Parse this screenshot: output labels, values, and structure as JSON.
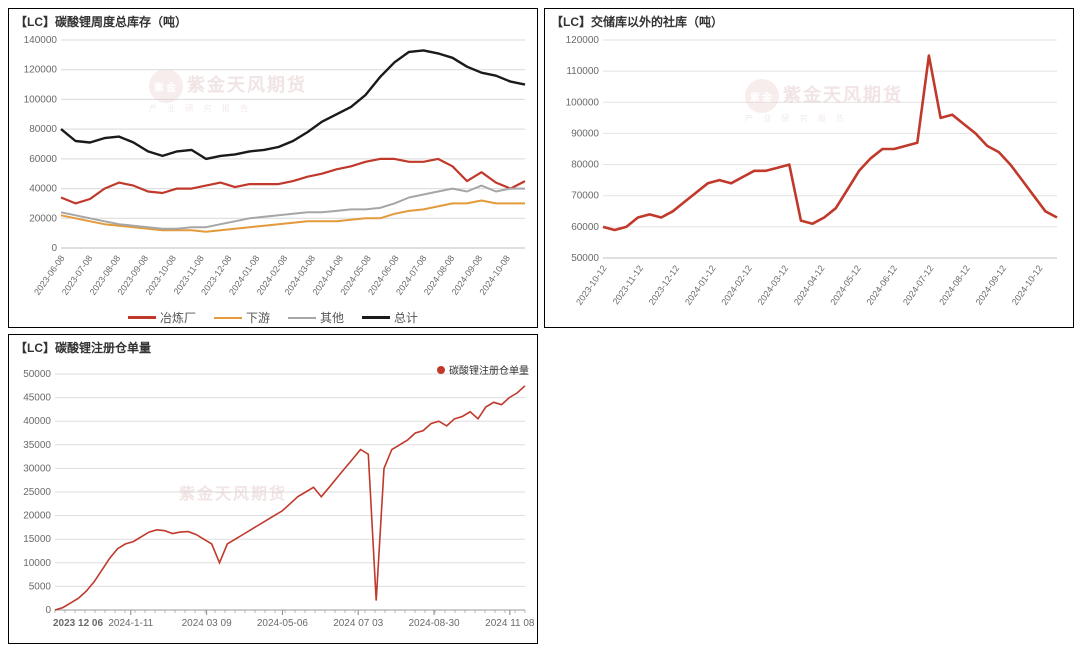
{
  "watermark": {
    "text": "紫金天风期货",
    "sub": "产 业 研 究 报 告"
  },
  "chart1": {
    "title": "【LC】碳酸锂周度总库存（吨）",
    "type": "line",
    "background_color": "#ffffff",
    "grid_color": "#d9d9d9",
    "axis_color": "#bfbfbf",
    "text_color": "#6a6a6a",
    "title_fontsize": 12,
    "label_fontsize": 10,
    "ylim": [
      0,
      140000
    ],
    "ytick_step": 20000,
    "yticks": [
      0,
      20000,
      40000,
      60000,
      80000,
      100000,
      120000,
      140000
    ],
    "xticks": [
      "2023-06-08",
      "2023-07-08",
      "2023-08-08",
      "2023-09-08",
      "2023-10-08",
      "2023-11-08",
      "2023-12-08",
      "2024-01-08",
      "2024-02-08",
      "2024-03-08",
      "2024-04-08",
      "2024-05-08",
      "2024-06-08",
      "2024-07-08",
      "2024-08-08",
      "2024-09-08",
      "2024-10-08"
    ],
    "series": [
      {
        "name": "冶炼厂",
        "color": "#c0392b",
        "width": 2.2,
        "values": [
          34000,
          30000,
          33000,
          40000,
          44000,
          42000,
          38000,
          37000,
          40000,
          40000,
          42000,
          44000,
          41000,
          43000,
          43000,
          43000,
          45000,
          48000,
          50000,
          53000,
          55000,
          58000,
          60000,
          60000,
          58000,
          58000,
          60000,
          55000,
          45000,
          51000,
          44000,
          40000,
          45000
        ]
      },
      {
        "name": "下游",
        "color": "#e29a3b",
        "width": 2,
        "values": [
          22000,
          20000,
          18000,
          16000,
          15000,
          14000,
          13000,
          12000,
          12000,
          12000,
          11000,
          12000,
          13000,
          14000,
          15000,
          16000,
          17000,
          18000,
          18000,
          18000,
          19000,
          20000,
          20000,
          23000,
          25000,
          26000,
          28000,
          30000,
          30000,
          32000,
          30000,
          30000,
          30000
        ]
      },
      {
        "name": "其他",
        "color": "#a6a6a6",
        "width": 2,
        "values": [
          24000,
          22000,
          20000,
          18000,
          16000,
          15000,
          14000,
          13000,
          13000,
          14000,
          14000,
          16000,
          18000,
          20000,
          21000,
          22000,
          23000,
          24000,
          24000,
          25000,
          26000,
          26000,
          27000,
          30000,
          34000,
          36000,
          38000,
          40000,
          38000,
          42000,
          38000,
          40000,
          40000
        ]
      },
      {
        "name": "总计",
        "color": "#1a1a1a",
        "width": 2.4,
        "values": [
          80000,
          72000,
          71000,
          74000,
          75000,
          71000,
          65000,
          62000,
          65000,
          66000,
          60000,
          62000,
          63000,
          65000,
          66000,
          68000,
          72000,
          78000,
          85000,
          90000,
          95000,
          103000,
          115000,
          125000,
          132000,
          133000,
          131000,
          128000,
          122000,
          118000,
          116000,
          112000,
          110000
        ]
      }
    ],
    "legend": [
      "冶炼厂",
      "下游",
      "其他",
      "总计"
    ]
  },
  "chart2": {
    "title": "【LC】交储库以外的社库（吨）",
    "type": "line",
    "background_color": "#ffffff",
    "grid_color": "#e2e2e2",
    "axis_color": "#bfbfbf",
    "text_color": "#6a6a6a",
    "title_fontsize": 12,
    "label_fontsize": 10,
    "ylim": [
      50000,
      120000
    ],
    "ytick_step": 10000,
    "yticks": [
      50000,
      60000,
      70000,
      80000,
      90000,
      100000,
      110000,
      120000
    ],
    "xticks": [
      "2023-10-12",
      "2023-11-12",
      "2023-12-12",
      "2024-01-12",
      "2024-02-12",
      "2024-03-12",
      "2024-04-12",
      "2024-05-12",
      "2024-06-12",
      "2024-07-12",
      "2024-08-12",
      "2024-09-12",
      "2024-10-12"
    ],
    "series": [
      {
        "name": "社库",
        "color": "#c0392b",
        "width": 2.6,
        "values": [
          60000,
          59000,
          60000,
          63000,
          64000,
          63000,
          65000,
          68000,
          71000,
          74000,
          75000,
          74000,
          76000,
          78000,
          78000,
          79000,
          80000,
          62000,
          61000,
          63000,
          66000,
          72000,
          78000,
          82000,
          85000,
          85000,
          86000,
          87000,
          115000,
          95000,
          96000,
          93000,
          90000,
          86000,
          84000,
          80000,
          75000,
          70000,
          65000,
          63000
        ]
      }
    ]
  },
  "chart3": {
    "title": "【LC】碳酸锂注册仓单量",
    "type": "line",
    "background_color": "#ffffff",
    "grid_color": "#dddddd",
    "axis_color": "#bfbfbf",
    "text_color": "#6a6a6a",
    "title_fontsize": 12,
    "label_fontsize": 9,
    "ylim": [
      0,
      50000
    ],
    "ytick_step": 5000,
    "yticks": [
      0,
      5000,
      10000,
      15000,
      20000,
      25000,
      30000,
      35000,
      40000,
      45000,
      50000
    ],
    "xticks_major": [
      "2024-1-11",
      "2024 03 09",
      "2024-05-06",
      "2024 07 03",
      "2024-08-30",
      "2024 11 08"
    ],
    "xstart_label": "2023 12 06",
    "legend_label": "碳酸锂注册仓单量",
    "legend_color": "#c0392b",
    "series": [
      {
        "name": "碳酸锂注册仓单量",
        "color": "#c0392b",
        "width": 1.6,
        "values": [
          0,
          500,
          1500,
          2500,
          4000,
          6000,
          8500,
          11000,
          13000,
          14000,
          14500,
          15500,
          16500,
          17000,
          16800,
          16200,
          16500,
          16600,
          16000,
          15000,
          14000,
          10000,
          14000,
          15000,
          16000,
          17000,
          18000,
          19000,
          20000,
          21000,
          22500,
          24000,
          25000,
          26000,
          24000,
          26000,
          28000,
          30000,
          32000,
          34000,
          33000,
          2000,
          30000,
          34000,
          35000,
          36000,
          37500,
          38000,
          39500,
          40000,
          39000,
          40500,
          41000,
          42000,
          40500,
          43000,
          44000,
          43500,
          45000,
          46000,
          47500
        ]
      }
    ]
  }
}
